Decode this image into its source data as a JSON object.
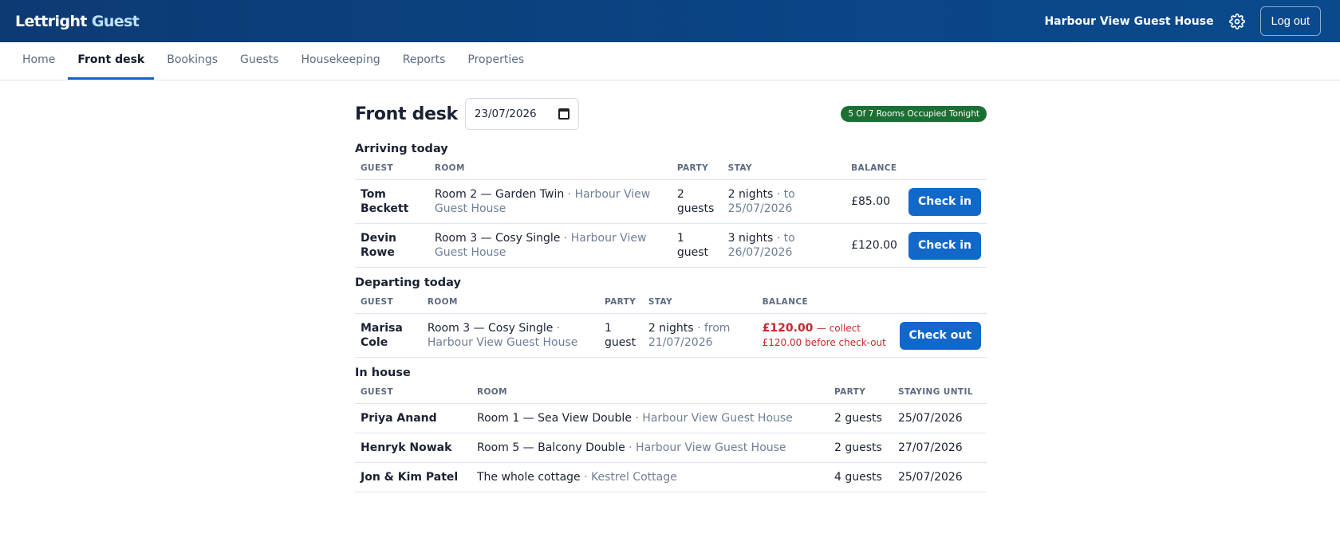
{
  "header": {
    "brand_part1": "Lettright",
    "brand_part2": "Guest",
    "property_name": "Harbour View Guest House",
    "logout_label": "Log out",
    "settings_icon": "gear-icon"
  },
  "nav": {
    "tabs": [
      {
        "label": "Home"
      },
      {
        "label": "Front desk",
        "active": true
      },
      {
        "label": "Bookings"
      },
      {
        "label": "Guests"
      },
      {
        "label": "Housekeeping"
      },
      {
        "label": "Reports"
      },
      {
        "label": "Properties"
      }
    ]
  },
  "page": {
    "title": "Front desk",
    "date_value": "23/07/2026",
    "occupancy_badge": "5 Of 7 Rooms Occupied Tonight",
    "colors": {
      "accent": "#1268c9",
      "badge": "#1a7033",
      "danger": "#c8262b",
      "header": "#0d3a73"
    }
  },
  "arriving": {
    "heading": "Arriving today",
    "columns": [
      "GUEST",
      "ROOM",
      "PARTY",
      "STAY",
      "BALANCE"
    ],
    "action_label": "Check in",
    "rows": [
      {
        "guest": "Tom Beckett",
        "room": "Room 2 — Garden Twin",
        "property": "· Harbour View Guest House",
        "party": "2 guests",
        "nights": "2 nights",
        "stay_note": "· to 25/07/2026",
        "balance": "£85.00"
      },
      {
        "guest": "Devin Rowe",
        "room": "Room 3 — Cosy Single",
        "property": "· Harbour View Guest House",
        "party": "1 guest",
        "nights": "3 nights",
        "stay_note": "· to 26/07/2026",
        "balance": "£120.00"
      }
    ]
  },
  "departing": {
    "heading": "Departing today",
    "columns": [
      "GUEST",
      "ROOM",
      "PARTY",
      "STAY",
      "BALANCE"
    ],
    "action_label": "Check out",
    "rows": [
      {
        "guest": "Marisa Cole",
        "room": "Room 3 — Cosy Single",
        "property": "· Harbour View Guest House",
        "party": "1 guest",
        "nights": "2 nights",
        "stay_note": "· from 21/07/2026",
        "balance": "£120.00",
        "balance_note": "— collect £120.00 before check-out"
      }
    ]
  },
  "in_house": {
    "heading": "In house",
    "columns": [
      "GUEST",
      "ROOM",
      "PARTY",
      "STAYING UNTIL"
    ],
    "rows": [
      {
        "guest": "Priya Anand",
        "room": "Room 1 — Sea View Double",
        "property": "· Harbour View Guest House",
        "party": "2 guests",
        "until": "25/07/2026"
      },
      {
        "guest": "Henryk Nowak",
        "room": "Room 5 — Balcony Double",
        "property": "· Harbour View Guest House",
        "party": "2 guests",
        "until": "27/07/2026"
      },
      {
        "guest": "Jon & Kim Patel",
        "room": "The whole cottage",
        "property": "· Kestrel Cottage",
        "party": "4 guests",
        "until": "25/07/2026"
      }
    ]
  }
}
